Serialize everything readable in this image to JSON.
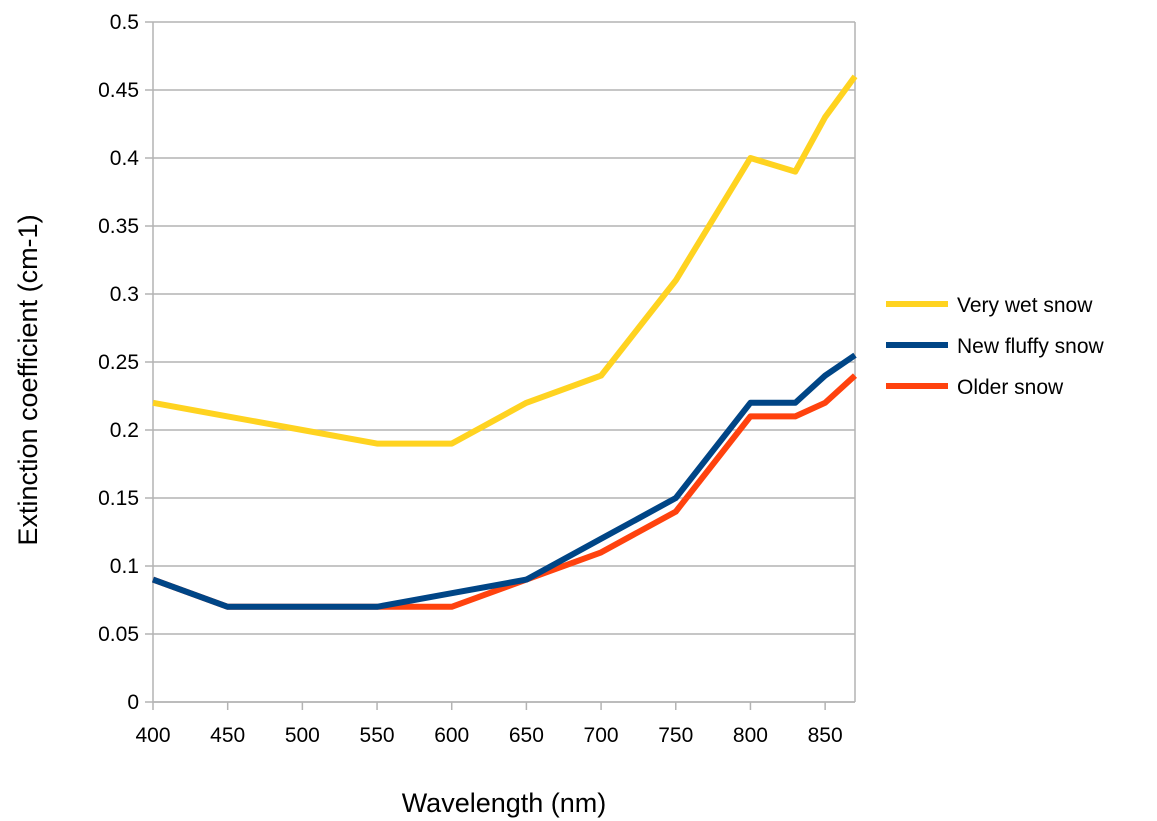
{
  "chart_data": {
    "type": "line",
    "title": "",
    "xlabel": "Wavelength (nm)",
    "ylabel": "Extinction coefficient (cm-1)",
    "xlim": [
      400,
      870
    ],
    "ylim": [
      0,
      0.5
    ],
    "x_ticks": [
      "400",
      "450",
      "500",
      "550",
      "600",
      "650",
      "700",
      "750",
      "800",
      "850"
    ],
    "x_tick_values": [
      400,
      450,
      500,
      550,
      600,
      650,
      700,
      750,
      800,
      850
    ],
    "y_ticks": [
      "0",
      "0.05",
      "0.1",
      "0.15",
      "0.2",
      "0.25",
      "0.3",
      "0.35",
      "0.4",
      "0.45",
      "0.5"
    ],
    "y_tick_values": [
      0,
      0.05,
      0.1,
      0.15,
      0.2,
      0.25,
      0.3,
      0.35,
      0.4,
      0.45,
      0.5
    ],
    "x": [
      400,
      450,
      500,
      550,
      600,
      650,
      700,
      750,
      800,
      830,
      850,
      870
    ],
    "grid": true,
    "legend_position": "right",
    "series": [
      {
        "name": "Very wet snow",
        "color": "#ffd320",
        "values": [
          0.22,
          0.21,
          0.2,
          0.19,
          0.19,
          0.22,
          0.24,
          0.31,
          0.4,
          0.39,
          0.43,
          0.46
        ]
      },
      {
        "name": "New fluffy snow",
        "color": "#004586",
        "values": [
          0.09,
          0.07,
          0.07,
          0.07,
          0.08,
          0.09,
          0.12,
          0.15,
          0.22,
          0.22,
          0.24,
          0.255
        ]
      },
      {
        "name": "Older snow",
        "color": "#ff420e",
        "values": [
          0.09,
          0.07,
          0.07,
          0.07,
          0.07,
          0.09,
          0.11,
          0.14,
          0.21,
          0.21,
          0.22,
          0.24
        ]
      }
    ]
  }
}
